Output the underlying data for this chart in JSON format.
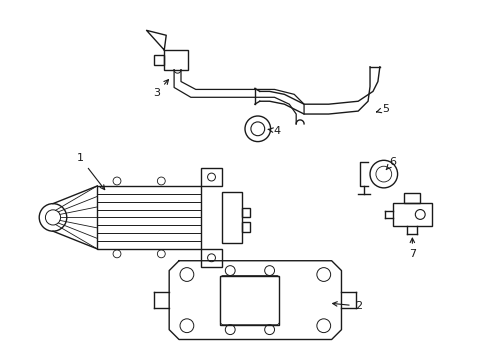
{
  "background_color": "#ffffff",
  "line_color": "#1a1a1a",
  "line_width": 1.0,
  "label_fontsize": 8,
  "fig_width": 4.89,
  "fig_height": 3.6,
  "dpi": 100
}
